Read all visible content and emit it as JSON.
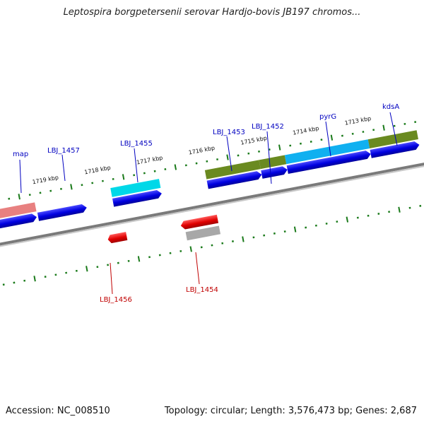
{
  "title": "Leptospira borgpetersenii serovar Hardjo-bovis JB197 chromos...",
  "accession": "Accession: NC_008510",
  "stats": "Topology: circular; Length: 3,576,473 bp; Genes: 2,687",
  "ticks": [
    {
      "label": "1719 kbp"
    },
    {
      "label": "1718 kbp"
    },
    {
      "label": "1717 kbp"
    },
    {
      "label": "1716 kbp"
    },
    {
      "label": "1715 kbp"
    },
    {
      "label": "1714 kbp"
    },
    {
      "label": "1713 kbp"
    }
  ],
  "gene_labels": {
    "map": "map",
    "lbj1457": "LBJ_1457",
    "lbj1455": "LBJ_1455",
    "lbj1453": "LBJ_1453",
    "lbj1452": "LBJ_1452",
    "pyrG": "pyrG",
    "kdsA": "kdsA",
    "lbj1456": "LBJ_1456",
    "lbj1454": "LBJ_1454"
  },
  "colors": {
    "forward_gene": "#0000e6",
    "reverse_gene": "#e60000",
    "forward_label": "#0000c0",
    "reverse_label": "#c00000",
    "backbone": "#777777",
    "tick": "#1a7a1a",
    "cds_pink": "#e88080",
    "cds_cyan": "#00d8e8",
    "cds_olive": "#6a8a20",
    "cds_skyblue": "#10b0f0",
    "cds_gray": "#a8a8a8"
  }
}
